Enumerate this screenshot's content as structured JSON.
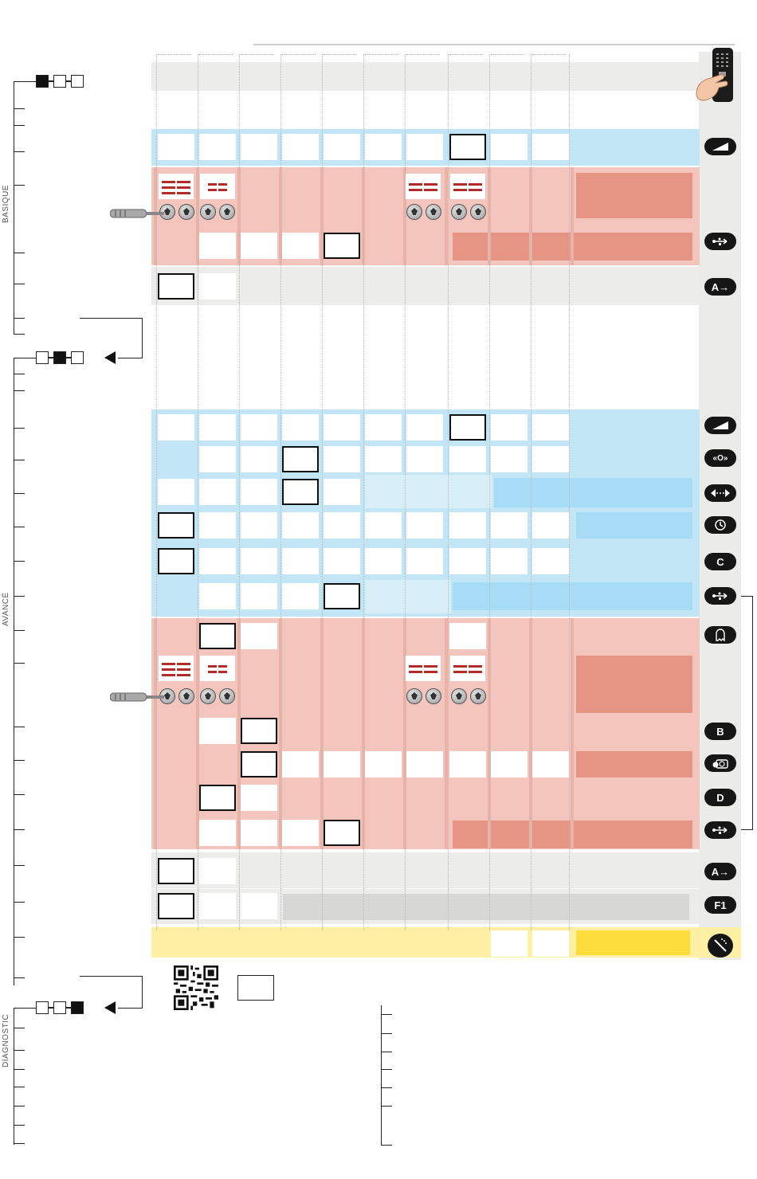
{
  "sections": {
    "basique": "BASIQUE",
    "avance": "AVANCÉ",
    "diagnostic": "DIAGNOSTIC"
  },
  "sidebar_icons": {
    "remote": "remote-control-icon",
    "contrast": "contrast-icon",
    "usb": "usb-icon",
    "mode_a": "A→",
    "move": "«O»",
    "width": "←--→",
    "clock": "clock-icon",
    "mode_c": "C",
    "ghost": "ghost-icon",
    "mode_b": "B",
    "camera": "camera-timer-icon",
    "mode_d": "D",
    "f1": "F1",
    "reset": "reset-icon"
  },
  "colors": {
    "blue_band": "#c3e6f6",
    "blue_dark": "#a6dcf5",
    "red_band": "#f3c5bc",
    "red_dark": "#e69585",
    "gray_band": "#ececea",
    "yellow_band": "#fdf0a5",
    "yellow_dark": "#fddd3b"
  }
}
